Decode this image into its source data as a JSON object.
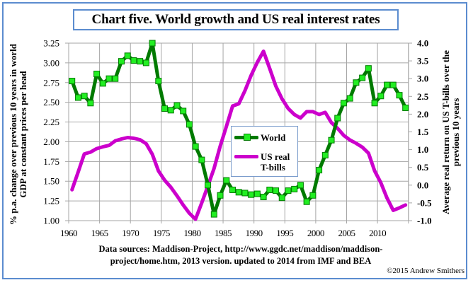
{
  "chart_data": {
    "type": "line",
    "title": "Chart five. World growth and US real interest rates",
    "xlabel": "",
    "ylabel": "% p.a. change over previous 10 years in world GDP at constant prices per head",
    "y2label": "Average real return on US T-bills over the previous 10 years",
    "x": [
      1960,
      1961,
      1962,
      1963,
      1964,
      1965,
      1966,
      1967,
      1968,
      1969,
      1970,
      1971,
      1972,
      1973,
      1974,
      1975,
      1976,
      1977,
      1978,
      1979,
      1980,
      1981,
      1982,
      1983,
      1984,
      1985,
      1986,
      1987,
      1988,
      1989,
      1990,
      1991,
      1992,
      1993,
      1994,
      1995,
      1996,
      1997,
      1998,
      1999,
      2000,
      2001,
      2002,
      2003,
      2004,
      2005,
      2006,
      2007,
      2008,
      2009,
      2010,
      2011,
      2012,
      2013,
      2014
    ],
    "xlim": [
      1960,
      2014
    ],
    "xticks": [
      "1960",
      "1965",
      "1970",
      "1975",
      "1980",
      "1985",
      "1990",
      "1995",
      "2000",
      "2005",
      "2010"
    ],
    "ylim": [
      1.0,
      3.25
    ],
    "yticks": [
      "3.25",
      "3.00",
      "2.75",
      "2.50",
      "2.25",
      "2.00",
      "1.75",
      "1.50",
      "1.25",
      "1.00"
    ],
    "y2lim": [
      -1.0,
      4.0
    ],
    "y2ticks": [
      "4.0",
      "3.5",
      "3.0",
      "2.5",
      "2.0",
      "1.5",
      "1.0",
      "0.5",
      "0.0",
      "-0.5",
      "-1.0"
    ],
    "grid": true,
    "legend_position": "center",
    "series": [
      {
        "name": "World",
        "axis": "left",
        "color": "#007a00",
        "marker_color": "#22ee22",
        "values": [
          2.77,
          2.56,
          2.58,
          2.49,
          2.86,
          2.74,
          2.8,
          2.8,
          3.02,
          3.09,
          3.03,
          3.02,
          3.0,
          3.25,
          2.77,
          2.42,
          2.4,
          2.46,
          2.39,
          2.22,
          1.94,
          1.77,
          1.45,
          1.08,
          1.32,
          1.51,
          1.39,
          1.36,
          1.35,
          1.33,
          1.34,
          1.3,
          1.39,
          1.38,
          1.29,
          1.38,
          1.4,
          1.45,
          1.24,
          1.32,
          1.64,
          1.83,
          2.02,
          2.3,
          2.49,
          2.55,
          2.75,
          2.81,
          2.93,
          2.49,
          2.58,
          2.72,
          2.72,
          2.59,
          2.43
        ]
      },
      {
        "name": "US real T-bills",
        "legend_lines": [
          "US real",
          "T-bills"
        ],
        "axis": "right",
        "color": "#cc00cc",
        "values": [
          -0.13,
          0.37,
          0.88,
          0.93,
          1.03,
          1.08,
          1.12,
          1.25,
          1.3,
          1.34,
          1.32,
          1.28,
          1.17,
          0.87,
          0.4,
          0.14,
          -0.06,
          -0.3,
          -0.56,
          -0.79,
          -0.96,
          -0.5,
          -0.02,
          0.47,
          1.1,
          1.66,
          2.23,
          2.29,
          2.66,
          3.09,
          3.46,
          3.77,
          3.29,
          2.79,
          2.43,
          2.16,
          1.99,
          1.89,
          2.07,
          2.07,
          1.99,
          2.05,
          1.76,
          1.6,
          1.4,
          1.27,
          1.18,
          1.07,
          0.9,
          0.4,
          0.07,
          -0.36,
          -0.71,
          -0.64,
          -0.56
        ]
      }
    ]
  },
  "footer": {
    "source_line1": "Data sources: Maddison-Project, http://www.ggdc.net/maddison/maddison-",
    "source_line2": "project/home.htm, 2013 version. updated to 2014 from IMF and BEA",
    "copyright": "©2015 Andrew Smithers"
  },
  "colors": {
    "frame": "#5b8ccf",
    "grid": "#a6a6a6"
  }
}
